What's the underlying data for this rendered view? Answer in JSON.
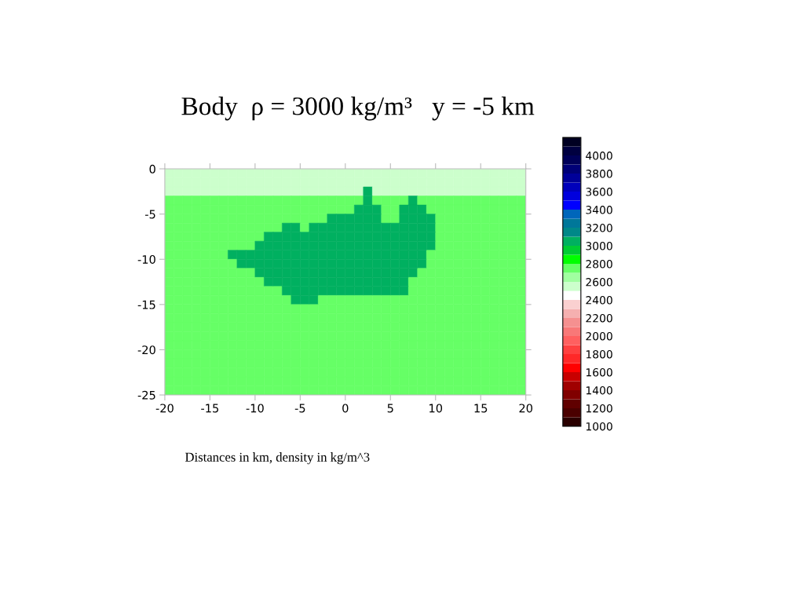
{
  "chart_data": {
    "type": "heatmap",
    "title": "Body  ρ = 3000 kg/m³   y = -5 km",
    "annotations": [
      "Distances in km, density in kg/m^3"
    ],
    "x": [
      -19.5,
      -18.5,
      -17.5,
      -16.5,
      -15.5,
      -14.5,
      -13.5,
      -12.5,
      -11.5,
      -10.5,
      -9.5,
      -8.5,
      -7.5,
      -6.5,
      -5.5,
      -4.5,
      -3.5,
      -2.5,
      -1.5,
      -0.5,
      0.5,
      1.5,
      2.5,
      3.5,
      4.5,
      5.5,
      6.5,
      7.5,
      8.5,
      9.5,
      10.5,
      11.5,
      12.5,
      13.5,
      14.5,
      15.5,
      16.5,
      17.5,
      18.5,
      19.5
    ],
    "y": [
      -0.5,
      -1.5,
      -2.5,
      -3.5,
      -4.5,
      -5.5,
      -6.5,
      -7.5,
      -8.5,
      -9.5,
      -10.5,
      -11.5,
      -12.5,
      -13.5,
      -14.5,
      -15.5,
      -16.5,
      -17.5,
      -18.5,
      -19.5,
      -20.5,
      -21.5,
      -22.5,
      -23.5,
      -24.5
    ],
    "xlim": [
      -20,
      20
    ],
    "xticks": [
      -20,
      -15,
      -10,
      -5,
      0,
      5,
      10,
      15,
      20
    ],
    "ylim": [
      -25,
      0
    ],
    "yticks": [
      -25,
      -20,
      -15,
      -10,
      -5,
      0
    ],
    "clim": [
      1000,
      4200
    ],
    "cticks": [
      1000,
      1200,
      1400,
      1600,
      1800,
      2000,
      2200,
      2400,
      2600,
      2800,
      3000,
      3200,
      3400,
      3600,
      3800,
      4000
    ],
    "grid": false,
    "cells": [
      [
        2500,
        2500,
        2500,
        2500,
        2500,
        2500,
        2500,
        2500,
        2500,
        2500,
        2500,
        2500,
        2500,
        2500,
        2500,
        2500,
        2500,
        2500,
        2500,
        2500,
        2500,
        2500,
        2500,
        2500,
        2500,
        2500,
        2500,
        2500,
        2500,
        2500,
        2500,
        2500,
        2500,
        2500,
        2500,
        2500,
        2500,
        2500,
        2500,
        2500
      ],
      [
        2500,
        2500,
        2500,
        2500,
        2500,
        2500,
        2500,
        2500,
        2500,
        2500,
        2500,
        2500,
        2500,
        2500,
        2500,
        2500,
        2500,
        2500,
        2500,
        2500,
        2500,
        2500,
        2500,
        2500,
        2500,
        2500,
        2500,
        2500,
        2500,
        2500,
        2500,
        2500,
        2500,
        2500,
        2500,
        2500,
        2500,
        2500,
        2500,
        2500
      ],
      [
        2500,
        2500,
        2500,
        2500,
        2500,
        2500,
        2500,
        2500,
        2500,
        2500,
        2500,
        2500,
        2500,
        2500,
        2500,
        2500,
        2500,
        2500,
        2500,
        2500,
        2500,
        2500,
        3000,
        2500,
        2500,
        2500,
        2500,
        2500,
        2500,
        2500,
        2500,
        2500,
        2500,
        2500,
        2500,
        2500,
        2500,
        2500,
        2500,
        2500
      ],
      [
        2700,
        2700,
        2700,
        2700,
        2700,
        2700,
        2700,
        2700,
        2700,
        2700,
        2700,
        2700,
        2700,
        2700,
        2700,
        2700,
        2700,
        2700,
        2700,
        2700,
        2700,
        2700,
        3000,
        2700,
        2700,
        2700,
        2700,
        3000,
        2700,
        2700,
        2700,
        2700,
        2700,
        2700,
        2700,
        2700,
        2700,
        2700,
        2700,
        2700
      ],
      [
        2700,
        2700,
        2700,
        2700,
        2700,
        2700,
        2700,
        2700,
        2700,
        2700,
        2700,
        2700,
        2700,
        2700,
        2700,
        2700,
        2700,
        2700,
        2700,
        2700,
        2700,
        3000,
        3000,
        3000,
        2700,
        2700,
        3000,
        3000,
        3000,
        2700,
        2700,
        2700,
        2700,
        2700,
        2700,
        2700,
        2700,
        2700,
        2700,
        2700
      ],
      [
        2700,
        2700,
        2700,
        2700,
        2700,
        2700,
        2700,
        2700,
        2700,
        2700,
        2700,
        2700,
        2700,
        2700,
        2700,
        2700,
        2700,
        2700,
        3000,
        3000,
        3000,
        3000,
        3000,
        3000,
        2700,
        2700,
        3000,
        3000,
        3000,
        3000,
        2700,
        2700,
        2700,
        2700,
        2700,
        2700,
        2700,
        2700,
        2700,
        2700
      ],
      [
        2700,
        2700,
        2700,
        2700,
        2700,
        2700,
        2700,
        2700,
        2700,
        2700,
        2700,
        2700,
        2700,
        3000,
        3000,
        2700,
        3000,
        3000,
        3000,
        3000,
        3000,
        3000,
        3000,
        3000,
        3000,
        3000,
        3000,
        3000,
        3000,
        3000,
        2700,
        2700,
        2700,
        2700,
        2700,
        2700,
        2700,
        2700,
        2700,
        2700
      ],
      [
        2700,
        2700,
        2700,
        2700,
        2700,
        2700,
        2700,
        2700,
        2700,
        2700,
        2700,
        3000,
        3000,
        3000,
        3000,
        3000,
        3000,
        3000,
        3000,
        3000,
        3000,
        3000,
        3000,
        3000,
        3000,
        3000,
        3000,
        3000,
        3000,
        3000,
        2700,
        2700,
        2700,
        2700,
        2700,
        2700,
        2700,
        2700,
        2700,
        2700
      ],
      [
        2700,
        2700,
        2700,
        2700,
        2700,
        2700,
        2700,
        2700,
        2700,
        2700,
        3000,
        3000,
        3000,
        3000,
        3000,
        3000,
        3000,
        3000,
        3000,
        3000,
        3000,
        3000,
        3000,
        3000,
        3000,
        3000,
        3000,
        3000,
        3000,
        3000,
        2700,
        2700,
        2700,
        2700,
        2700,
        2700,
        2700,
        2700,
        2700,
        2700
      ],
      [
        2700,
        2700,
        2700,
        2700,
        2700,
        2700,
        2700,
        3000,
        3000,
        3000,
        3000,
        3000,
        3000,
        3000,
        3000,
        3000,
        3000,
        3000,
        3000,
        3000,
        3000,
        3000,
        3000,
        3000,
        3000,
        3000,
        3000,
        3000,
        3000,
        2700,
        2700,
        2700,
        2700,
        2700,
        2700,
        2700,
        2700,
        2700,
        2700,
        2700
      ],
      [
        2700,
        2700,
        2700,
        2700,
        2700,
        2700,
        2700,
        2700,
        3000,
        3000,
        3000,
        3000,
        3000,
        3000,
        3000,
        3000,
        3000,
        3000,
        3000,
        3000,
        3000,
        3000,
        3000,
        3000,
        3000,
        3000,
        3000,
        3000,
        3000,
        2700,
        2700,
        2700,
        2700,
        2700,
        2700,
        2700,
        2700,
        2700,
        2700,
        2700
      ],
      [
        2700,
        2700,
        2700,
        2700,
        2700,
        2700,
        2700,
        2700,
        2700,
        2700,
        3000,
        3000,
        3000,
        3000,
        3000,
        3000,
        3000,
        3000,
        3000,
        3000,
        3000,
        3000,
        3000,
        3000,
        3000,
        3000,
        3000,
        3000,
        2700,
        2700,
        2700,
        2700,
        2700,
        2700,
        2700,
        2700,
        2700,
        2700,
        2700,
        2700
      ],
      [
        2700,
        2700,
        2700,
        2700,
        2700,
        2700,
        2700,
        2700,
        2700,
        2700,
        2700,
        3000,
        3000,
        3000,
        3000,
        3000,
        3000,
        3000,
        3000,
        3000,
        3000,
        3000,
        3000,
        3000,
        3000,
        3000,
        3000,
        2700,
        2700,
        2700,
        2700,
        2700,
        2700,
        2700,
        2700,
        2700,
        2700,
        2700,
        2700,
        2700
      ],
      [
        2700,
        2700,
        2700,
        2700,
        2700,
        2700,
        2700,
        2700,
        2700,
        2700,
        2700,
        2700,
        2700,
        3000,
        3000,
        3000,
        3000,
        3000,
        3000,
        3000,
        3000,
        3000,
        3000,
        3000,
        3000,
        3000,
        3000,
        2700,
        2700,
        2700,
        2700,
        2700,
        2700,
        2700,
        2700,
        2700,
        2700,
        2700,
        2700,
        2700
      ],
      [
        2700,
        2700,
        2700,
        2700,
        2700,
        2700,
        2700,
        2700,
        2700,
        2700,
        2700,
        2700,
        2700,
        2700,
        3000,
        3000,
        3000,
        2700,
        2700,
        2700,
        2700,
        2700,
        2700,
        2700,
        2700,
        2700,
        2700,
        2700,
        2700,
        2700,
        2700,
        2700,
        2700,
        2700,
        2700,
        2700,
        2700,
        2700,
        2700,
        2700
      ],
      [
        2700,
        2700,
        2700,
        2700,
        2700,
        2700,
        2700,
        2700,
        2700,
        2700,
        2700,
        2700,
        2700,
        2700,
        2700,
        2700,
        2700,
        2700,
        2700,
        2700,
        2700,
        2700,
        2700,
        2700,
        2700,
        2700,
        2700,
        2700,
        2700,
        2700,
        2700,
        2700,
        2700,
        2700,
        2700,
        2700,
        2700,
        2700,
        2700,
        2700
      ],
      [
        2700,
        2700,
        2700,
        2700,
        2700,
        2700,
        2700,
        2700,
        2700,
        2700,
        2700,
        2700,
        2700,
        2700,
        2700,
        2700,
        2700,
        2700,
        2700,
        2700,
        2700,
        2700,
        2700,
        2700,
        2700,
        2700,
        2700,
        2700,
        2700,
        2700,
        2700,
        2700,
        2700,
        2700,
        2700,
        2700,
        2700,
        2700,
        2700,
        2700
      ],
      [
        2700,
        2700,
        2700,
        2700,
        2700,
        2700,
        2700,
        2700,
        2700,
        2700,
        2700,
        2700,
        2700,
        2700,
        2700,
        2700,
        2700,
        2700,
        2700,
        2700,
        2700,
        2700,
        2700,
        2700,
        2700,
        2700,
        2700,
        2700,
        2700,
        2700,
        2700,
        2700,
        2700,
        2700,
        2700,
        2700,
        2700,
        2700,
        2700,
        2700
      ],
      [
        2700,
        2700,
        2700,
        2700,
        2700,
        2700,
        2700,
        2700,
        2700,
        2700,
        2700,
        2700,
        2700,
        2700,
        2700,
        2700,
        2700,
        2700,
        2700,
        2700,
        2700,
        2700,
        2700,
        2700,
        2700,
        2700,
        2700,
        2700,
        2700,
        2700,
        2700,
        2700,
        2700,
        2700,
        2700,
        2700,
        2700,
        2700,
        2700,
        2700
      ],
      [
        2700,
        2700,
        2700,
        2700,
        2700,
        2700,
        2700,
        2700,
        2700,
        2700,
        2700,
        2700,
        2700,
        2700,
        2700,
        2700,
        2700,
        2700,
        2700,
        2700,
        2700,
        2700,
        2700,
        2700,
        2700,
        2700,
        2700,
        2700,
        2700,
        2700,
        2700,
        2700,
        2700,
        2700,
        2700,
        2700,
        2700,
        2700,
        2700,
        2700
      ],
      [
        2700,
        2700,
        2700,
        2700,
        2700,
        2700,
        2700,
        2700,
        2700,
        2700,
        2700,
        2700,
        2700,
        2700,
        2700,
        2700,
        2700,
        2700,
        2700,
        2700,
        2700,
        2700,
        2700,
        2700,
        2700,
        2700,
        2700,
        2700,
        2700,
        2700,
        2700,
        2700,
        2700,
        2700,
        2700,
        2700,
        2700,
        2700,
        2700,
        2700
      ],
      [
        2700,
        2700,
        2700,
        2700,
        2700,
        2700,
        2700,
        2700,
        2700,
        2700,
        2700,
        2700,
        2700,
        2700,
        2700,
        2700,
        2700,
        2700,
        2700,
        2700,
        2700,
        2700,
        2700,
        2700,
        2700,
        2700,
        2700,
        2700,
        2700,
        2700,
        2700,
        2700,
        2700,
        2700,
        2700,
        2700,
        2700,
        2700,
        2700,
        2700
      ],
      [
        2700,
        2700,
        2700,
        2700,
        2700,
        2700,
        2700,
        2700,
        2700,
        2700,
        2700,
        2700,
        2700,
        2700,
        2700,
        2700,
        2700,
        2700,
        2700,
        2700,
        2700,
        2700,
        2700,
        2700,
        2700,
        2700,
        2700,
        2700,
        2700,
        2700,
        2700,
        2700,
        2700,
        2700,
        2700,
        2700,
        2700,
        2700,
        2700,
        2700
      ],
      [
        2700,
        2700,
        2700,
        2700,
        2700,
        2700,
        2700,
        2700,
        2700,
        2700,
        2700,
        2700,
        2700,
        2700,
        2700,
        2700,
        2700,
        2700,
        2700,
        2700,
        2700,
        2700,
        2700,
        2700,
        2700,
        2700,
        2700,
        2700,
        2700,
        2700,
        2700,
        2700,
        2700,
        2700,
        2700,
        2700,
        2700,
        2700,
        2700,
        2700
      ],
      [
        2700,
        2700,
        2700,
        2700,
        2700,
        2700,
        2700,
        2700,
        2700,
        2700,
        2700,
        2700,
        2700,
        2700,
        2700,
        2700,
        2700,
        2700,
        2700,
        2700,
        2700,
        2700,
        2700,
        2700,
        2700,
        2700,
        2700,
        2700,
        2700,
        2700,
        2700,
        2700,
        2700,
        2700,
        2700,
        2700,
        2700,
        2700,
        2700,
        2700
      ]
    ]
  }
}
